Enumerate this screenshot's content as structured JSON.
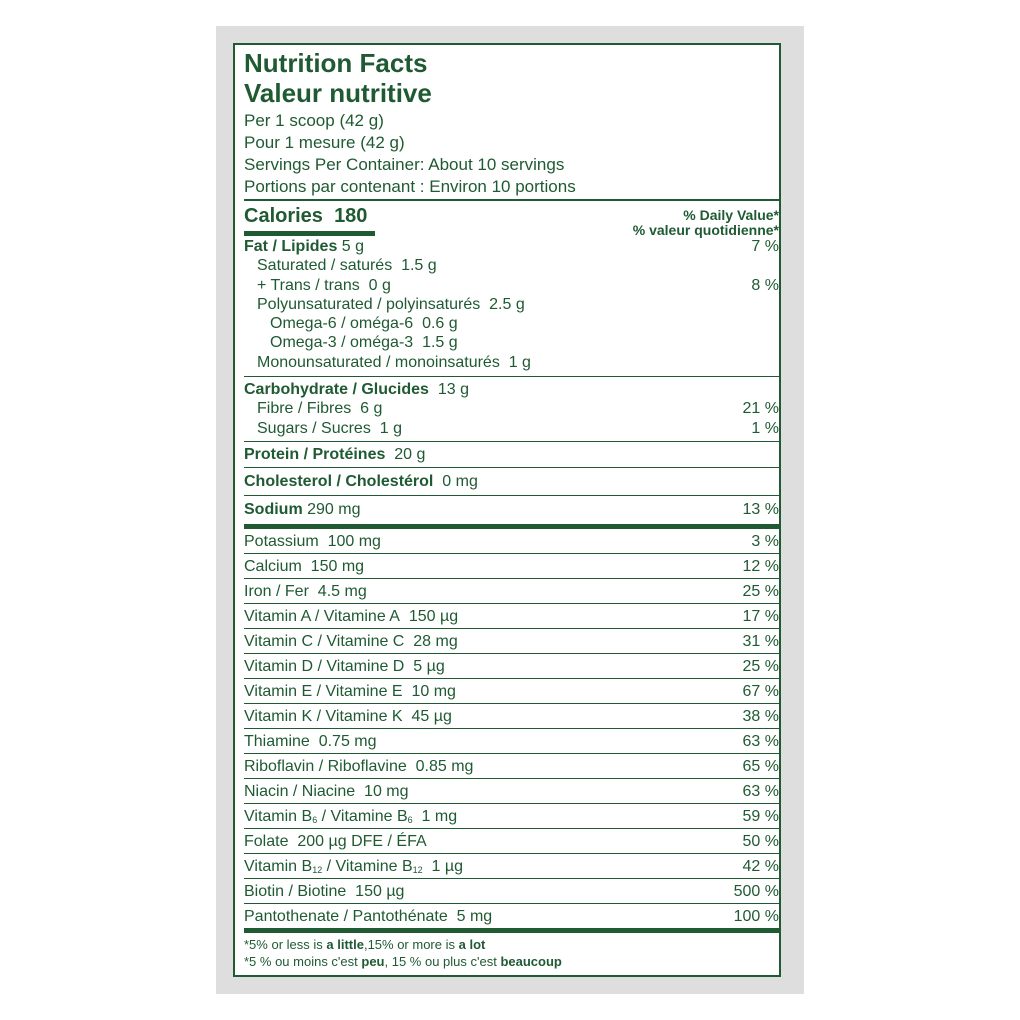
{
  "header": {
    "title_en": "Nutrition Facts",
    "title_fr": "Valeur nutritive",
    "serving_en": "Per 1 scoop (42 g)",
    "serving_fr": "Pour 1 mesure (42 g)",
    "servings_en": "Servings Per Container: About 10 servings",
    "servings_fr": "Portions par contenant : Environ 10 portions"
  },
  "calories": {
    "label": "Calories",
    "value": "180"
  },
  "daily_value": {
    "en": "% Daily Value*",
    "fr": "% valeur quotidienne*"
  },
  "fat_section": [
    {
      "bold": "Fat / Lipides",
      "text": " 5 g",
      "pct": "7 %",
      "indent": 0
    },
    {
      "text": "Saturated / saturés  1.5 g",
      "pct": "",
      "indent": 1
    },
    {
      "text": "+ Trans / trans  0 g",
      "pct": "8 %",
      "indent": 1
    },
    {
      "text": "Polyunsaturated / polyinsaturés   2.5 g",
      "pct": "",
      "indent": 1
    },
    {
      "text": "Omega-6 / oméga-6  0.6 g",
      "pct": "",
      "indent": 2
    },
    {
      "text": "Omega-3 / oméga-3  1.5 g",
      "pct": "",
      "indent": 2
    },
    {
      "text": "Monounsaturated / monoinsaturés   1 g",
      "pct": "",
      "indent": 1
    }
  ],
  "carb_section": [
    {
      "bold": "Carbohydrate / Glucides",
      "text": "  13 g",
      "pct": "",
      "indent": 0
    },
    {
      "text": "Fibre / Fibres  6 g",
      "pct": "21 %",
      "indent": 1
    },
    {
      "text": "Sugars / Sucres  1 g",
      "pct": "1 %",
      "indent": 1
    }
  ],
  "protein": {
    "bold": "Protein / Protéines",
    "text": "  20 g",
    "pct": ""
  },
  "cholesterol": {
    "bold": "Cholesterol / Cholestérol",
    "text": "  0 mg",
    "pct": ""
  },
  "sodium": {
    "bold": "Sodium",
    "text": " 290 mg",
    "pct": "13 %"
  },
  "micronutrients": [
    {
      "label": [
        {
          "t": "Potassium  100 mg"
        }
      ],
      "pct": "3 %"
    },
    {
      "label": [
        {
          "t": "Calcium  150 mg"
        }
      ],
      "pct": "12 %"
    },
    {
      "label": [
        {
          "t": "Iron / Fer  4.5 mg"
        }
      ],
      "pct": "25 %"
    },
    {
      "label": [
        {
          "t": "Vitamin A / Vitamine A  150 µg"
        }
      ],
      "pct": "17 %"
    },
    {
      "label": [
        {
          "t": "Vitamin C / Vitamine C  28 mg"
        }
      ],
      "pct": "31 %"
    },
    {
      "label": [
        {
          "t": "Vitamin D / Vitamine D  5 µg"
        }
      ],
      "pct": "25 %"
    },
    {
      "label": [
        {
          "t": "Vitamin E / Vitamine E  10 mg"
        }
      ],
      "pct": "67 %"
    },
    {
      "label": [
        {
          "t": "Vitamin K / Vitamine K  45 µg"
        }
      ],
      "pct": "38 %"
    },
    {
      "label": [
        {
          "t": "Thiamine  0.75 mg"
        }
      ],
      "pct": "63 %"
    },
    {
      "label": [
        {
          "t": "Riboflavin / Riboflavine  0.85 mg"
        }
      ],
      "pct": "65 %"
    },
    {
      "label": [
        {
          "t": "Niacin / Niacine  10 mg"
        }
      ],
      "pct": "63 %"
    },
    {
      "label": [
        {
          "t": "Vitamin B"
        },
        {
          "sub": "6"
        },
        {
          "t": " / Vitamine B"
        },
        {
          "sub": "6"
        },
        {
          "t": "  1 mg"
        }
      ],
      "pct": "59 %"
    },
    {
      "label": [
        {
          "t": "Folate  200 µg DFE / ÉFA"
        }
      ],
      "pct": "50 %"
    },
    {
      "label": [
        {
          "t": "Vitamin B"
        },
        {
          "sub": "12"
        },
        {
          "t": " / Vitamine B"
        },
        {
          "sub": "12"
        },
        {
          "t": "  1 µg"
        }
      ],
      "pct": "42 %"
    },
    {
      "label": [
        {
          "t": "Biotin / Biotine  150 µg"
        }
      ],
      "pct": "500 %"
    },
    {
      "label": [
        {
          "t": "Pantothenate / Pantothénate  5 mg"
        }
      ],
      "pct": "100 %"
    }
  ],
  "footnote": {
    "en": [
      {
        "t": "*5% or less is "
      },
      {
        "b": "a little"
      },
      {
        "t": ",15% or more is "
      },
      {
        "b": "a lot"
      }
    ],
    "fr": [
      {
        "t": "*5 % ou moins c'est "
      },
      {
        "b": "peu"
      },
      {
        "t": ", 15 % ou plus c'est "
      },
      {
        "b": "beaucoup"
      }
    ]
  },
  "colors": {
    "brand_green": "#1f5a32",
    "background": "#dedede"
  }
}
